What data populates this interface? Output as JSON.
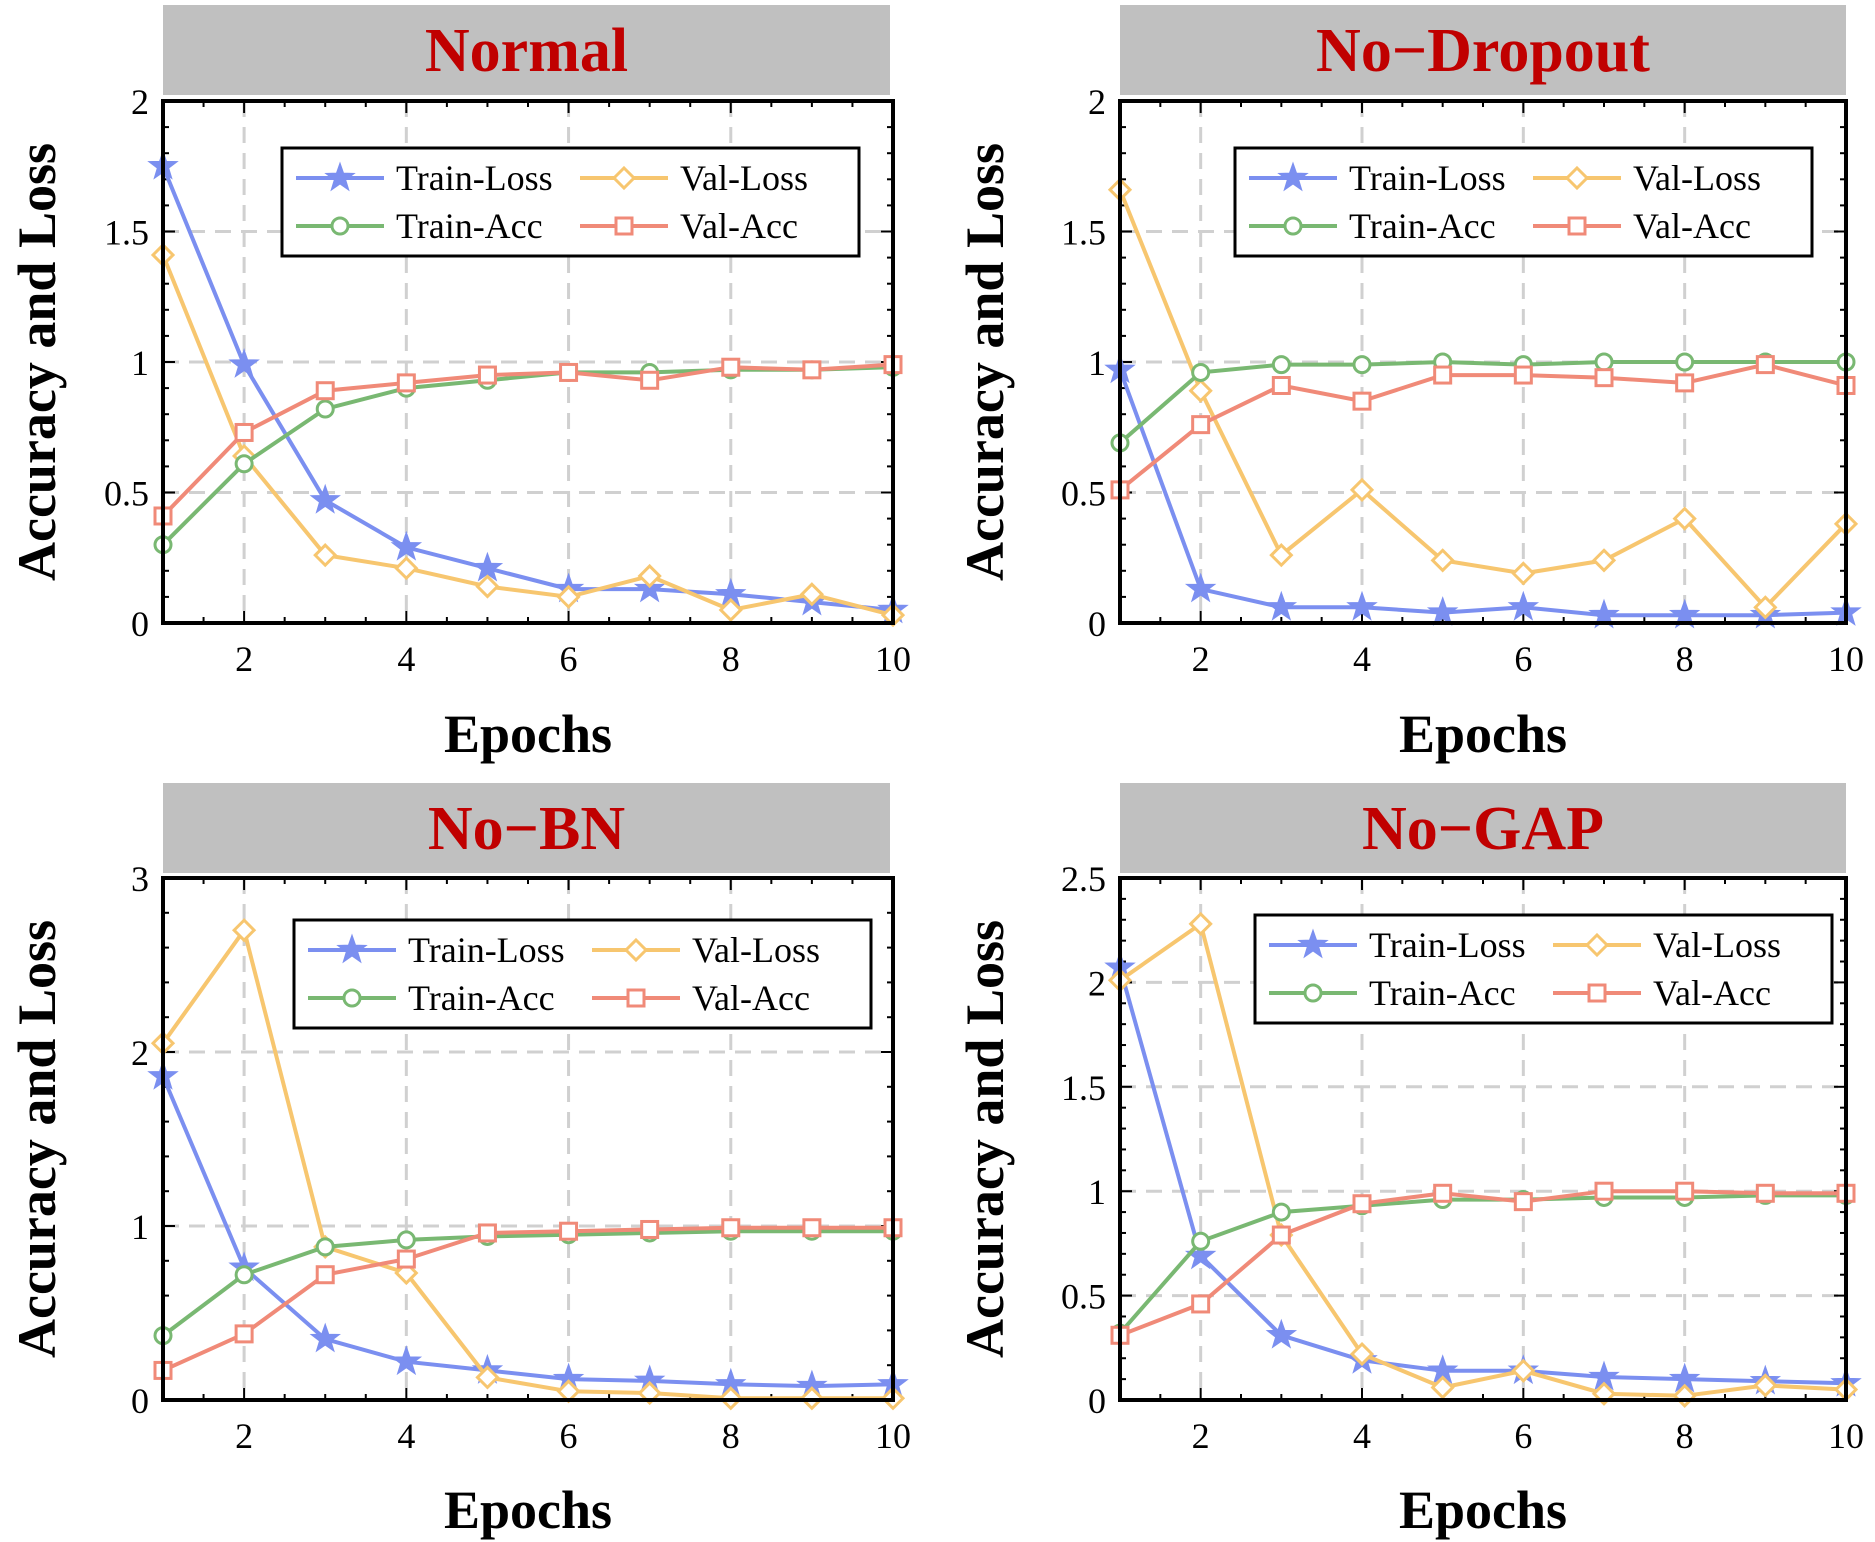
{
  "colors": {
    "train_loss": "#7b8ff0",
    "val_loss": "#f7c66f",
    "train_acc": "#79b872",
    "val_acc": "#f08a78",
    "title": "#c00000",
    "title_bar": "#c0c0c0"
  },
  "series_labels": {
    "train_loss": "Train-Loss",
    "val_loss": "Val-Loss",
    "train_acc": "Train-Acc",
    "val_acc": "Val-Acc"
  },
  "chart_data": [
    {
      "type": "line",
      "title": "Normal",
      "xlabel": "Epochs",
      "ylabel": "Accuracy and Loss",
      "xlim": [
        1,
        10
      ],
      "ylim": [
        0,
        2
      ],
      "xticks": [
        2,
        4,
        6,
        8,
        10
      ],
      "yticks": [
        0,
        0.5,
        1,
        1.5,
        2
      ],
      "ytick_labels": [
        "0",
        "0.5",
        "1",
        "1.5",
        "2"
      ],
      "legend": "top-right",
      "grid": true,
      "x": [
        1,
        2,
        3,
        4,
        5,
        6,
        7,
        8,
        9,
        10
      ],
      "series": [
        {
          "key": "train_loss",
          "name": "Train-Loss",
          "marker": "star",
          "values": [
            1.75,
            0.99,
            0.47,
            0.29,
            0.21,
            0.13,
            0.13,
            0.11,
            0.08,
            0.05
          ]
        },
        {
          "key": "val_loss",
          "name": "Val-Loss",
          "marker": "diamond",
          "values": [
            1.41,
            0.64,
            0.26,
            0.21,
            0.14,
            0.1,
            0.18,
            0.05,
            0.11,
            0.03
          ]
        },
        {
          "key": "train_acc",
          "name": "Train-Acc",
          "marker": "circle",
          "values": [
            0.3,
            0.61,
            0.82,
            0.9,
            0.93,
            0.96,
            0.96,
            0.97,
            0.97,
            0.98
          ]
        },
        {
          "key": "val_acc",
          "name": "Val-Acc",
          "marker": "square",
          "values": [
            0.41,
            0.73,
            0.89,
            0.92,
            0.95,
            0.96,
            0.93,
            0.98,
            0.97,
            0.99
          ]
        }
      ]
    },
    {
      "type": "line",
      "title": "No−Dropout",
      "xlabel": "Epochs",
      "ylabel": "Accuracy and Loss",
      "xlim": [
        1,
        10
      ],
      "ylim": [
        0,
        2
      ],
      "xticks": [
        2,
        4,
        6,
        8,
        10
      ],
      "yticks": [
        0,
        0.5,
        1,
        1.5,
        2
      ],
      "ytick_labels": [
        "0",
        "0.5",
        "1",
        "1.5",
        "2"
      ],
      "legend": "top-right",
      "grid": true,
      "x": [
        1,
        2,
        3,
        4,
        5,
        6,
        7,
        8,
        9,
        10
      ],
      "series": [
        {
          "key": "train_loss",
          "name": "Train-Loss",
          "marker": "star",
          "values": [
            0.97,
            0.13,
            0.06,
            0.06,
            0.04,
            0.06,
            0.03,
            0.03,
            0.03,
            0.04
          ]
        },
        {
          "key": "val_loss",
          "name": "Val-Loss",
          "marker": "diamond",
          "values": [
            1.66,
            0.89,
            0.26,
            0.51,
            0.24,
            0.19,
            0.24,
            0.4,
            0.06,
            0.38
          ]
        },
        {
          "key": "train_acc",
          "name": "Train-Acc",
          "marker": "circle",
          "values": [
            0.69,
            0.96,
            0.99,
            0.99,
            1.0,
            0.99,
            1.0,
            1.0,
            1.0,
            1.0
          ]
        },
        {
          "key": "val_acc",
          "name": "Val-Acc",
          "marker": "square",
          "values": [
            0.51,
            0.76,
            0.91,
            0.85,
            0.95,
            0.95,
            0.94,
            0.92,
            0.99,
            0.91
          ]
        }
      ]
    },
    {
      "type": "line",
      "title": "No−BN",
      "xlabel": "Epochs",
      "ylabel": "Accuracy and Loss",
      "xlim": [
        1,
        10
      ],
      "ylim": [
        0,
        3
      ],
      "xticks": [
        2,
        4,
        6,
        8,
        10
      ],
      "yticks": [
        0,
        1,
        2,
        3
      ],
      "ytick_labels": [
        "0",
        "1",
        "2",
        "3"
      ],
      "legend": "top-right",
      "grid": true,
      "x": [
        1,
        2,
        3,
        4,
        5,
        6,
        7,
        8,
        9,
        10
      ],
      "series": [
        {
          "key": "train_loss",
          "name": "Train-Loss",
          "marker": "star",
          "values": [
            1.86,
            0.76,
            0.35,
            0.22,
            0.17,
            0.12,
            0.11,
            0.09,
            0.08,
            0.09
          ]
        },
        {
          "key": "val_loss",
          "name": "Val-Loss",
          "marker": "diamond",
          "values": [
            2.05,
            2.7,
            0.88,
            0.73,
            0.13,
            0.05,
            0.04,
            0.01,
            0.01,
            0.01
          ]
        },
        {
          "key": "train_acc",
          "name": "Train-Acc",
          "marker": "circle",
          "values": [
            0.37,
            0.72,
            0.88,
            0.92,
            0.94,
            0.95,
            0.96,
            0.97,
            0.97,
            0.97
          ]
        },
        {
          "key": "val_acc",
          "name": "Val-Acc",
          "marker": "square",
          "values": [
            0.17,
            0.38,
            0.72,
            0.81,
            0.96,
            0.97,
            0.98,
            0.99,
            0.99,
            0.99
          ]
        }
      ]
    },
    {
      "type": "line",
      "title": "No−GAP",
      "xlabel": "Epochs",
      "ylabel": "Accuracy and Loss",
      "xlim": [
        1,
        10
      ],
      "ylim": [
        0,
        2.5
      ],
      "xticks": [
        2,
        4,
        6,
        8,
        10
      ],
      "yticks": [
        0,
        0.5,
        1,
        1.5,
        2,
        2.5
      ],
      "ytick_labels": [
        "0",
        "0.5",
        "1",
        "1.5",
        "2",
        "2.5"
      ],
      "legend": "top-right",
      "grid": true,
      "x": [
        1,
        2,
        3,
        4,
        5,
        6,
        7,
        8,
        9,
        10
      ],
      "series": [
        {
          "key": "train_loss",
          "name": "Train-Loss",
          "marker": "star",
          "values": [
            2.07,
            0.69,
            0.31,
            0.19,
            0.14,
            0.14,
            0.11,
            0.1,
            0.09,
            0.08
          ]
        },
        {
          "key": "val_loss",
          "name": "Val-Loss",
          "marker": "diamond",
          "values": [
            2.01,
            2.28,
            0.79,
            0.22,
            0.06,
            0.14,
            0.03,
            0.02,
            0.07,
            0.05
          ]
        },
        {
          "key": "train_acc",
          "name": "Train-Acc",
          "marker": "circle",
          "values": [
            0.32,
            0.76,
            0.9,
            0.93,
            0.96,
            0.96,
            0.97,
            0.97,
            0.98,
            0.98
          ]
        },
        {
          "key": "val_acc",
          "name": "Val-Acc",
          "marker": "square",
          "values": [
            0.31,
            0.46,
            0.79,
            0.94,
            0.99,
            0.95,
            1.0,
            1.0,
            0.99,
            0.99
          ]
        }
      ]
    }
  ]
}
